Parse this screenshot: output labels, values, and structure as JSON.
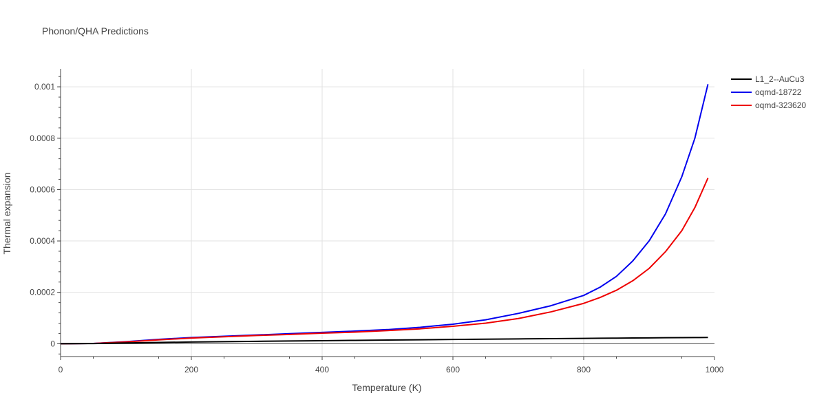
{
  "chart_data": {
    "type": "line",
    "title": "Phonon/QHA Predictions",
    "xlabel": "Temperature (K)",
    "ylabel": "Thermal expansion",
    "xlim": [
      0,
      1000
    ],
    "ylim": [
      -5e-05,
      0.00107
    ],
    "x_ticks": [
      0,
      200,
      400,
      600,
      800,
      1000
    ],
    "x_tick_labels": [
      "0",
      "200",
      "400",
      "600",
      "800",
      "1000"
    ],
    "y_ticks": [
      0,
      0.0002,
      0.0004,
      0.0006,
      0.0008,
      0.001
    ],
    "y_tick_labels": [
      "0",
      "0.0002",
      "0.0004",
      "0.0006",
      "0.0008",
      "0.001"
    ],
    "grid": true,
    "legend_position": "top-right",
    "x": [
      0,
      50,
      100,
      150,
      200,
      250,
      300,
      350,
      400,
      450,
      500,
      550,
      600,
      650,
      700,
      750,
      800,
      825,
      850,
      875,
      900,
      925,
      950,
      970,
      990
    ],
    "series": [
      {
        "name": "L1_2--AuCu3",
        "color": "#000000",
        "values": [
          0,
          5e-07,
          3e-06,
          5e-06,
          6.5e-06,
          8e-06,
          9.3e-06,
          1.05e-05,
          1.18e-05,
          1.3e-05,
          1.42e-05,
          1.53e-05,
          1.65e-05,
          1.76e-05,
          1.87e-05,
          1.97e-05,
          2.07e-05,
          2.12e-05,
          2.17e-05,
          2.22e-05,
          2.27e-05,
          2.32e-05,
          2.36e-05,
          2.4e-05,
          2.43e-05
        ]
      },
      {
        "name": "oqmd-18722",
        "color": "#0000ee",
        "values": [
          0,
          1e-06,
          8e-06,
          1.7e-05,
          2.4e-05,
          2.9e-05,
          3.4e-05,
          3.9e-05,
          4.4e-05,
          4.9e-05,
          5.5e-05,
          6.4e-05,
          7.6e-05,
          9.3e-05,
          0.000118,
          0.000148,
          0.000188,
          0.00022,
          0.000262,
          0.000322,
          0.0004,
          0.000505,
          0.00065,
          0.0008,
          0.00101
        ]
      },
      {
        "name": "oqmd-323620",
        "color": "#ee0000",
        "values": [
          0,
          1e-06,
          7e-06,
          1.5e-05,
          2.2e-05,
          2.7e-05,
          3.2e-05,
          3.6e-05,
          4.1e-05,
          4.5e-05,
          5.1e-05,
          5.8e-05,
          6.8e-05,
          8e-05,
          9.8e-05,
          0.000124,
          0.000157,
          0.00018,
          0.000208,
          0.000245,
          0.000293,
          0.000358,
          0.00044,
          0.00053,
          0.000645
        ]
      }
    ]
  }
}
